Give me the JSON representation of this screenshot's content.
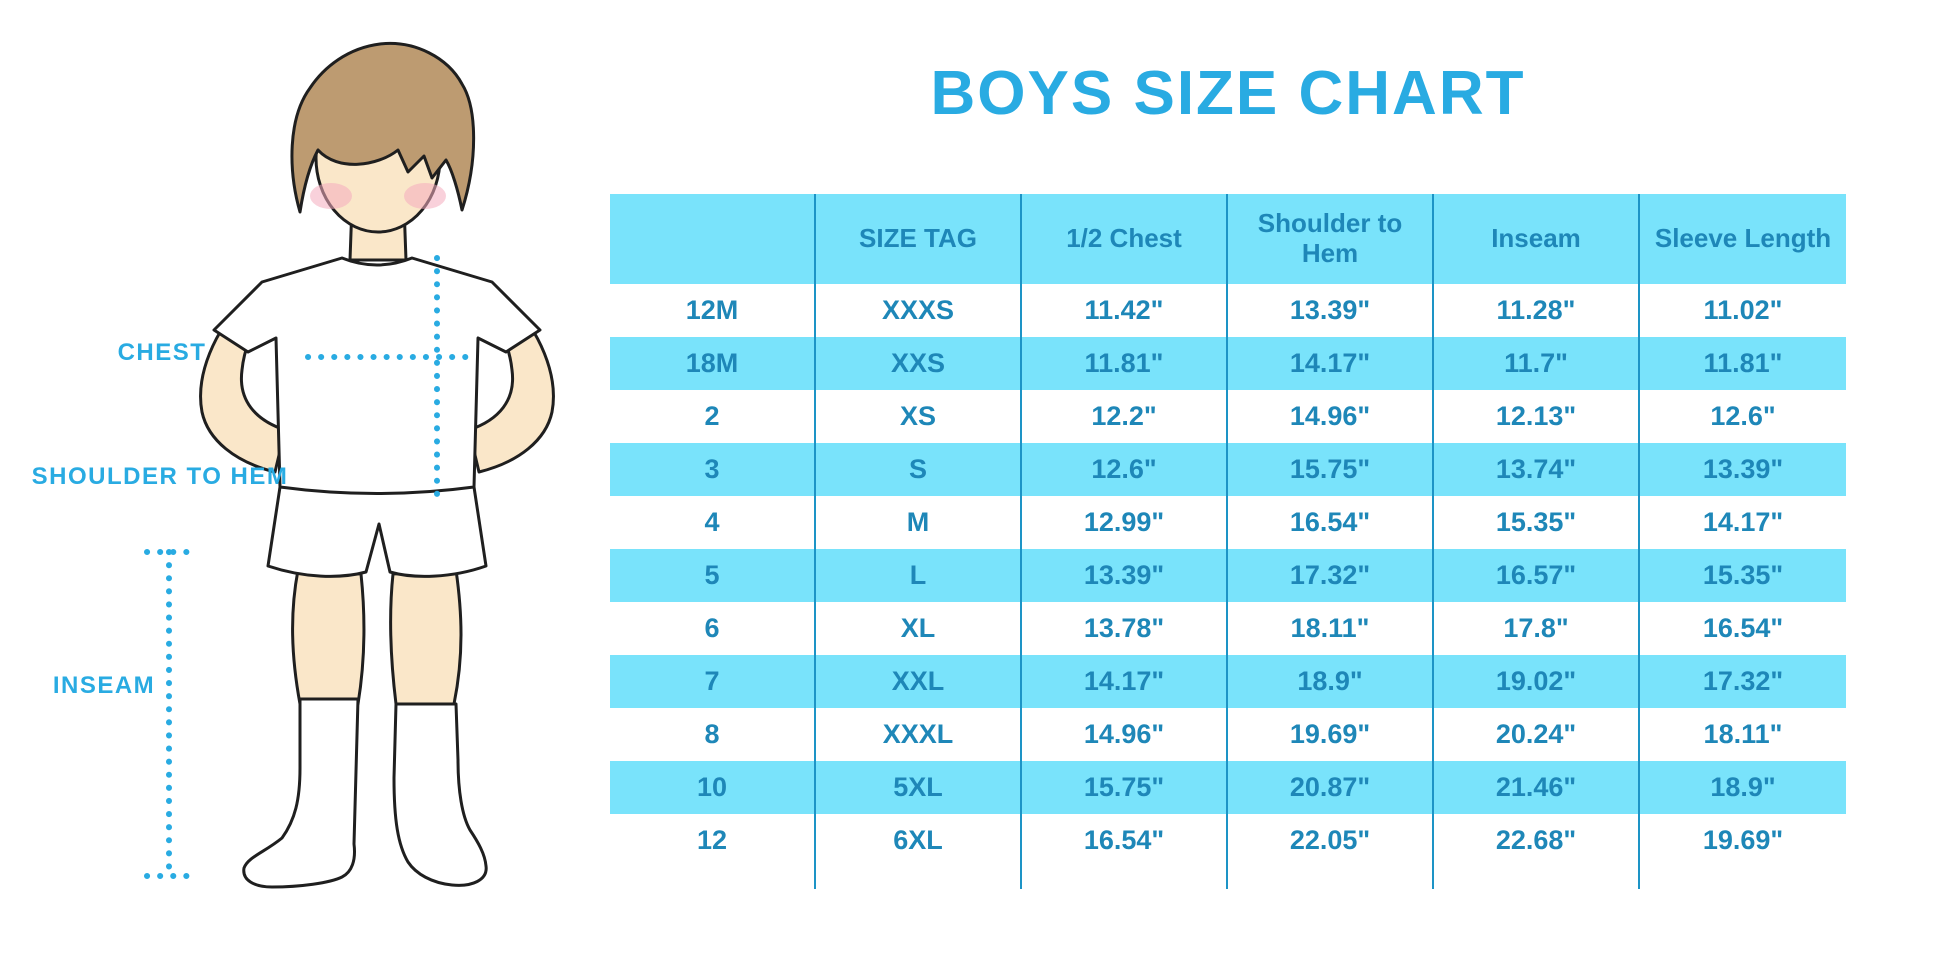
{
  "page": {
    "title": "BOYS SIZE CHART"
  },
  "diagram": {
    "chest_label": "CHEST",
    "shoulder_to_hem_label": "SHOULDER TO HEM",
    "inseam_label": "INSEAM"
  },
  "chart_data": {
    "type": "table",
    "title": "BOYS SIZE CHART",
    "columns": [
      "",
      "SIZE TAG",
      "1/2 Chest",
      "Shoulder to Hem",
      "Inseam",
      "Sleeve Length"
    ],
    "rows": [
      [
        "12M",
        "XXXS",
        "11.42\"",
        "13.39\"",
        "11.28\"",
        "11.02\""
      ],
      [
        "18M",
        "XXS",
        "11.81\"",
        "14.17\"",
        "11.7\"",
        "11.81\""
      ],
      [
        "2",
        "XS",
        "12.2\"",
        "14.96\"",
        "12.13\"",
        "12.6\""
      ],
      [
        "3",
        "S",
        "12.6\"",
        "15.75\"",
        "13.74\"",
        "13.39\""
      ],
      [
        "4",
        "M",
        "12.99\"",
        "16.54\"",
        "15.35\"",
        "14.17\""
      ],
      [
        "5",
        "L",
        "13.39\"",
        "17.32\"",
        "16.57\"",
        "15.35\""
      ],
      [
        "6",
        "XL",
        "13.78\"",
        "18.11\"",
        "17.8\"",
        "16.54\""
      ],
      [
        "7",
        "XXL",
        "14.17\"",
        "18.9\"",
        "19.02\"",
        "17.32\""
      ],
      [
        "8",
        "XXXL",
        "14.96\"",
        "19.69\"",
        "20.24\"",
        "18.11\""
      ],
      [
        "10",
        "5XL",
        "15.75\"",
        "20.87\"",
        "21.46\"",
        "18.9\""
      ],
      [
        "12",
        "6XL",
        "16.54\"",
        "22.05\"",
        "22.68\"",
        "19.69\""
      ]
    ]
  },
  "colors": {
    "accent": "#29ABE2",
    "table_fill": "#79E3FB",
    "table_text": "#1E87B8",
    "separator": "#1D94C6",
    "skin": "#FAE7C9",
    "hair": "#BD9B71",
    "blush": "#F4ABBE",
    "outline": "#1F1F1F"
  }
}
